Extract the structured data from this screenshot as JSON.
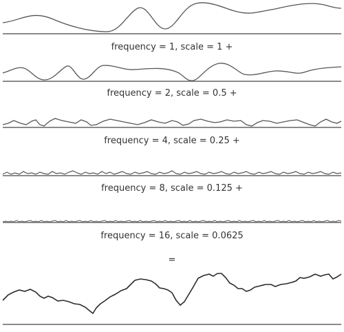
{
  "rows": [
    {
      "caption": "frequency = 1, scale = 1 +"
    },
    {
      "caption": "frequency = 2, scale = 0.5 +"
    },
    {
      "caption": "frequency = 4, scale = 0.25 +"
    },
    {
      "caption": "frequency = 8, scale = 0.125 +"
    },
    {
      "caption": "frequency = 16, scale = 0.0625"
    }
  ],
  "equals_label": "=",
  "colors": {
    "curve": "#555555",
    "sum_curve": "#2a2a2a",
    "baseline": "#8a8a8a",
    "text": "#333333"
  }
}
